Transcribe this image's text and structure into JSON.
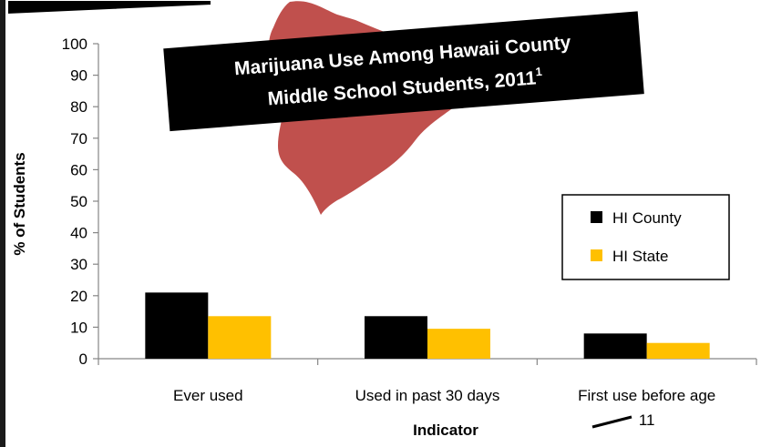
{
  "chart_data": {
    "type": "bar",
    "title_line1": "Marijuana Use Among Hawaii County",
    "title_line2": "Middle School Students, 2011",
    "title_superscript": "1",
    "xlabel": "Indicator",
    "ylabel": "% of Students",
    "ylim": [
      0,
      100
    ],
    "yticks": [
      0,
      10,
      20,
      30,
      40,
      50,
      60,
      70,
      80,
      90,
      100
    ],
    "categories": [
      [
        "Ever used"
      ],
      [
        "Used in past 30 days"
      ],
      [
        "First use before age",
        "11"
      ]
    ],
    "series": [
      {
        "name": "HI County",
        "values": [
          21,
          13.5,
          8
        ],
        "color": "#000000"
      },
      {
        "name": "HI State",
        "values": [
          13.5,
          9.5,
          5
        ],
        "color": "#FFC000"
      }
    ],
    "legend_position": "right",
    "grid": false
  },
  "decor": {
    "island_color": "#C0504D",
    "title_box_color": "#000000",
    "title_text_color": "#ffffff"
  }
}
